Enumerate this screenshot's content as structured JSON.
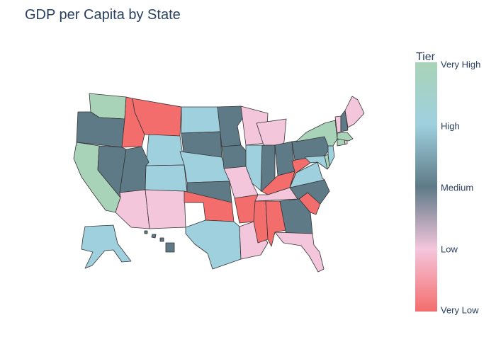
{
  "chart_data": {
    "type": "choropleth",
    "title": "GDP per Capita by State",
    "legend": {
      "title": "Tier",
      "placement": "right",
      "tiers": [
        "Very High",
        "High",
        "Medium",
        "Low",
        "Very Low"
      ],
      "colors": {
        "Very High": "#a9d3b8",
        "High": "#9fd0de",
        "Medium": "#5e7a87",
        "Low": "#f4c6dc",
        "Very Low": "#f46d6d"
      },
      "gradient": [
        {
          "tier": "Very High",
          "color": "#a9d3b8"
        },
        {
          "tier": "High",
          "color": "#9fd0de"
        },
        {
          "tier": "Medium",
          "color": "#5e7a87"
        },
        {
          "tier": "Low",
          "color": "#f4c6dc"
        },
        {
          "tier": "Very Low",
          "color": "#f46d6d"
        }
      ]
    },
    "states": {
      "WA": "Very High",
      "CA": "Very High",
      "NY": "Very High",
      "MA": "Very High",
      "CT": "Very High",
      "DE": "Very High",
      "ND": "High",
      "WY": "High",
      "NE": "High",
      "CO": "High",
      "TX": "High",
      "IL": "High",
      "VA": "High",
      "MD": "High",
      "NJ": "High",
      "AK": "High",
      "OR": "Medium",
      "NV": "Medium",
      "UT": "Medium",
      "SD": "Medium",
      "KS": "Medium",
      "MN": "Medium",
      "IA": "Medium",
      "IN": "Medium",
      "OH": "Medium",
      "PA": "Medium",
      "NC": "Medium",
      "GA": "Medium",
      "NH": "Medium",
      "HI": "Medium",
      "AZ": "Low",
      "NM": "Low",
      "WI": "Low",
      "MI": "Low",
      "MO": "Low",
      "LA": "Low",
      "TN": "Low",
      "FL": "Low",
      "ME": "Low",
      "VT": "Low",
      "RI": "Low",
      "ID": "Very Low",
      "MT": "Very Low",
      "OK": "Very Low",
      "AR": "Very Low",
      "MS": "Very Low",
      "AL": "Very Low",
      "KY": "Very Low",
      "WV": "Very Low",
      "SC": "Very Low"
    }
  }
}
